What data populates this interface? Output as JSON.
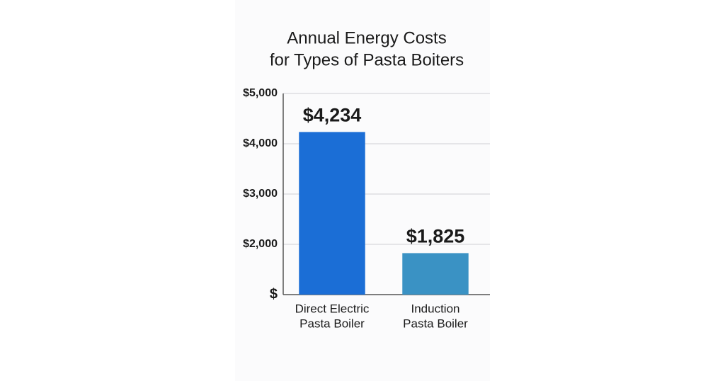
{
  "chart_data": {
    "type": "bar",
    "title": [
      "Annual Energy Costs",
      "for Types of Pasta Boiters"
    ],
    "categories": [
      [
        "Direct Electric",
        "Pasta Boiler"
      ],
      [
        "Induction",
        "Pasta Boiler"
      ]
    ],
    "values": [
      4234,
      1825
    ],
    "value_labels": [
      "$4,234",
      "$1,825"
    ],
    "colors": [
      "#1b6ed6",
      "#3a92c4"
    ],
    "ylim": [
      1000,
      5000
    ],
    "yticks": [
      {
        "value": 1000,
        "label": "$"
      },
      {
        "value": 2000,
        "label": "$2,000"
      },
      {
        "value": 3000,
        "label": "$3,000"
      },
      {
        "value": 4000,
        "label": "$4,000"
      },
      {
        "value": 5000,
        "label": "$5,000"
      }
    ],
    "grid": true
  }
}
